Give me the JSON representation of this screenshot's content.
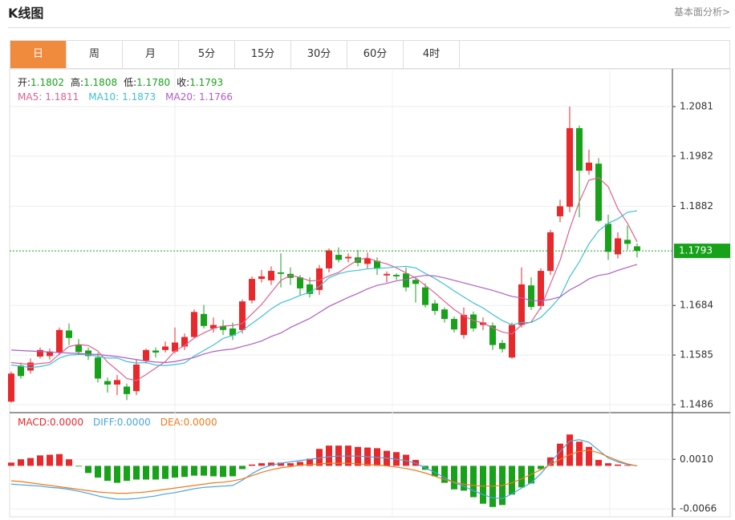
{
  "header": {
    "title": "K线图",
    "link": "基本面分析>"
  },
  "tabs": [
    "日",
    "周",
    "月",
    "5分",
    "15分",
    "30分",
    "60分",
    "4时"
  ],
  "chart_data": [
    {
      "type": "candlestick",
      "info": [
        {
          "name": "开:",
          "value": 1.1802
        },
        {
          "name": "高:",
          "value": 1.1808
        },
        {
          "name": "低:",
          "value": 1.178,
          "label": "1.1780"
        },
        {
          "name": "收:",
          "value": 1.1793
        }
      ],
      "open": [
        1.1492,
        1.1564,
        1.1554,
        1.1582,
        1.1583,
        1.159,
        1.1634,
        1.1606,
        1.1594,
        1.158,
        1.1533,
        1.1526,
        1.1522,
        1.1513,
        1.1574,
        1.1594,
        1.1595,
        1.1592,
        1.1602,
        1.1621,
        1.1667,
        1.1638,
        1.1643,
        1.1638,
        1.1635,
        1.1694,
        1.1737,
        1.1734,
        1.175,
        1.1747,
        1.174,
        1.1726,
        1.1715,
        1.1758,
        1.1785,
        1.1778,
        1.178,
        1.1767,
        1.1773,
        1.1744,
        1.1745,
        1.1748,
        1.1735,
        1.172,
        1.1688,
        1.1676,
        1.1657,
        1.1625,
        1.1666,
        1.1645,
        1.1644,
        1.1609,
        1.158,
        1.1645,
        1.1724,
        1.1683,
        1.1753,
        1.1862,
        1.1881,
        1.2038,
        1.1953,
        1.1967,
        1.1847,
        1.1786,
        1.1815,
        1.1802
      ],
      "high": [
        1.1552,
        1.157,
        1.1578,
        1.16,
        1.1598,
        1.164,
        1.1648,
        1.1617,
        1.16,
        1.159,
        1.154,
        1.1545,
        1.1528,
        1.1575,
        1.1598,
        1.16,
        1.1612,
        1.164,
        1.1628,
        1.1676,
        1.1685,
        1.166,
        1.1655,
        1.165,
        1.1696,
        1.1742,
        1.1755,
        1.1762,
        1.1788,
        1.176,
        1.1745,
        1.174,
        1.1765,
        1.1798,
        1.18,
        1.1788,
        1.1795,
        1.179,
        1.178,
        1.1752,
        1.1748,
        1.176,
        1.174,
        1.1728,
        1.1695,
        1.168,
        1.1662,
        1.168,
        1.1672,
        1.166,
        1.165,
        1.1615,
        1.165,
        1.176,
        1.174,
        1.1758,
        1.1835,
        1.1895,
        1.2081,
        1.2043,
        1.1995,
        1.1978,
        1.1865,
        1.183,
        1.1843,
        1.1808
      ],
      "low": [
        1.149,
        1.1538,
        1.1548,
        1.1578,
        1.1576,
        1.1585,
        1.1605,
        1.1585,
        1.1575,
        1.153,
        1.151,
        1.1505,
        1.1495,
        1.1505,
        1.1568,
        1.158,
        1.159,
        1.1588,
        1.1595,
        1.1618,
        1.1638,
        1.163,
        1.1625,
        1.1615,
        1.1628,
        1.1688,
        1.173,
        1.1725,
        1.172,
        1.1725,
        1.1705,
        1.17,
        1.1705,
        1.175,
        1.177,
        1.177,
        1.1762,
        1.1758,
        1.1745,
        1.173,
        1.1735,
        1.1712,
        1.169,
        1.168,
        1.1665,
        1.165,
        1.163,
        1.1618,
        1.1632,
        1.1635,
        1.1595,
        1.159,
        1.1578,
        1.164,
        1.1675,
        1.1676,
        1.1745,
        1.185,
        1.187,
        1.186,
        1.1945,
        1.185,
        1.1775,
        1.1778,
        1.1795,
        1.178
      ],
      "close": [
        1.1548,
        1.1543,
        1.157,
        1.1595,
        1.1592,
        1.1635,
        1.1619,
        1.1591,
        1.1583,
        1.1538,
        1.1526,
        1.1535,
        1.1507,
        1.1566,
        1.1595,
        1.159,
        1.1602,
        1.161,
        1.1621,
        1.1671,
        1.1643,
        1.1645,
        1.1635,
        1.1624,
        1.1692,
        1.1737,
        1.1742,
        1.1753,
        1.1747,
        1.1739,
        1.1718,
        1.1707,
        1.1758,
        1.1794,
        1.1775,
        1.1781,
        1.1769,
        1.1778,
        1.1758,
        1.1747,
        1.1742,
        1.172,
        1.1727,
        1.1685,
        1.1673,
        1.1657,
        1.1636,
        1.1665,
        1.1638,
        1.165,
        1.1605,
        1.1597,
        1.1645,
        1.1726,
        1.1681,
        1.1753,
        1.183,
        1.1882,
        1.2038,
        1.1953,
        1.1969,
        1.1853,
        1.1791,
        1.1818,
        1.1807,
        1.1793
      ],
      "up_color": "#e8282b",
      "down_color": "#17a21a",
      "series": [
        {
          "name": "MA5:",
          "color": "#e0608f",
          "values": [
            1.157,
            1.1568,
            1.1566,
            1.1568,
            1.157,
            1.1587,
            1.1602,
            1.1606,
            1.1604,
            1.1593,
            1.1571,
            1.1555,
            1.1538,
            1.1534,
            1.1546,
            1.1559,
            1.1572,
            1.1593,
            1.1604,
            1.1619,
            1.1629,
            1.1638,
            1.1643,
            1.1644,
            1.1648,
            1.1667,
            1.1686,
            1.171,
            1.1734,
            1.1744,
            1.174,
            1.1733,
            1.1734,
            1.1743,
            1.175,
            1.1763,
            1.1775,
            1.1779,
            1.1772,
            1.1767,
            1.1759,
            1.1749,
            1.1739,
            1.1724,
            1.1709,
            1.1692,
            1.1676,
            1.1663,
            1.1654,
            1.1649,
            1.1639,
            1.1631,
            1.1627,
            1.1645,
            1.1651,
            1.168,
            1.1727,
            1.1774,
            1.1837,
            1.1891,
            1.1934,
            1.1939,
            1.1921,
            1.1877,
            1.1848,
            1.1811
          ]
        },
        {
          "name": "MA10:",
          "color": "#3fc0d6",
          "values": [
            1.1565,
            1.1563,
            1.156,
            1.1562,
            1.1566,
            1.1579,
            1.1585,
            1.1586,
            1.1586,
            1.1582,
            1.1579,
            1.1579,
            1.1572,
            1.1569,
            1.157,
            1.1565,
            1.1564,
            1.1566,
            1.1569,
            1.1583,
            1.1594,
            1.1605,
            1.1618,
            1.1624,
            1.1634,
            1.1648,
            1.1662,
            1.1677,
            1.1689,
            1.1696,
            1.1704,
            1.171,
            1.1722,
            1.1739,
            1.1747,
            1.1752,
            1.1754,
            1.1757,
            1.1758,
            1.1759,
            1.1761,
            1.1762,
            1.1759,
            1.1748,
            1.1738,
            1.1726,
            1.1713,
            1.1701,
            1.1689,
            1.1679,
            1.1666,
            1.1654,
            1.1645,
            1.165,
            1.165,
            1.166,
            1.1679,
            1.1701,
            1.1741,
            1.1771,
            1.1807,
            1.1833,
            1.1848,
            1.1857,
            1.187,
            1.1873
          ]
        },
        {
          "name": "MA20:",
          "color": "#b05cc4",
          "values": [
            1.1595,
            1.1594,
            1.1593,
            1.1592,
            1.1591,
            1.159,
            1.1589,
            1.1588,
            1.1587,
            1.1586,
            1.1584,
            1.1582,
            1.1579,
            1.1576,
            1.1573,
            1.1571,
            1.157,
            1.1572,
            1.1576,
            1.158,
            1.1587,
            1.1592,
            1.1595,
            1.1597,
            1.1602,
            1.1607,
            1.1613,
            1.1622,
            1.1629,
            1.164,
            1.1649,
            1.1658,
            1.167,
            1.1682,
            1.1691,
            1.17,
            1.1708,
            1.1717,
            1.1724,
            1.1728,
            1.1733,
            1.1736,
            1.1741,
            1.1744,
            1.1743,
            1.1739,
            1.1734,
            1.1729,
            1.1724,
            1.1719,
            1.1714,
            1.1708,
            1.1702,
            1.1699,
            1.1694,
            1.1693,
            1.1696,
            1.1701,
            1.1715,
            1.1725,
            1.1737,
            1.1744,
            1.1747,
            1.1754,
            1.176,
            1.1766
          ]
        }
      ],
      "ylim": [
        1.147,
        1.2153
      ],
      "yticks": [
        1.2081,
        1.1982,
        1.1882,
        1.1684,
        1.1585,
        1.1486
      ],
      "grid": true,
      "last_price": 1.1793,
      "last_price_color": "#17a21a"
    },
    {
      "type": "macd",
      "up_color": "#e8282b",
      "down_color": "#17a21a",
      "series": [
        {
          "name": "MACD:",
          "color": "#e8282b",
          "legend_label": "0.0000",
          "values": [
            0.0005,
            0.001,
            0.0012,
            0.0016,
            0.0017,
            0.0018,
            0.001,
            -0.0001,
            -0.0011,
            -0.0018,
            -0.0023,
            -0.0026,
            -0.0023,
            -0.0021,
            -0.0021,
            -0.0021,
            -0.002,
            -0.0018,
            -0.0017,
            -0.0015,
            -0.0015,
            -0.0016,
            -0.0017,
            -0.0016,
            -0.0005,
            0.0002,
            0.0004,
            0.0005,
            0.0005,
            0.0004,
            0.0006,
            0.0011,
            0.0026,
            0.0031,
            0.0031,
            0.0031,
            0.0029,
            0.0028,
            0.0027,
            0.0023,
            0.0021,
            0.0017,
            0.0009,
            -0.0006,
            -0.0016,
            -0.0026,
            -0.0036,
            -0.0038,
            -0.0048,
            -0.0058,
            -0.0063,
            -0.006,
            -0.0044,
            -0.0033,
            -0.0027,
            -0.0005,
            0.0013,
            0.0034,
            0.0048,
            0.0037,
            0.0029,
            0.0009,
            0.0004,
            0.0002,
            0.0001,
            0
          ]
        },
        {
          "name": "DIFF:",
          "color": "#4aa3df",
          "legend_label": "0.0000",
          "values": [
            -0.0028,
            -0.0029,
            -0.003,
            -0.0031,
            -0.0033,
            -0.0034,
            -0.0036,
            -0.0039,
            -0.0042,
            -0.0046,
            -0.0049,
            -0.0051,
            -0.0051,
            -0.005,
            -0.0048,
            -0.0046,
            -0.0043,
            -0.0041,
            -0.0038,
            -0.0035,
            -0.0033,
            -0.0032,
            -0.0031,
            -0.003,
            -0.0022,
            -0.0012,
            -0.0004,
            0.0001,
            0.0004,
            0.0006,
            0.0008,
            0.001,
            0.0012,
            0.0014,
            0.0015,
            0.0015,
            0.0015,
            0.0014,
            0.0013,
            0.0012,
            0.001,
            0.0008,
            0.0004,
            -0.0003,
            -0.001,
            -0.0018,
            -0.0026,
            -0.0031,
            -0.0038,
            -0.0044,
            -0.0049,
            -0.005,
            -0.0043,
            -0.0034,
            -0.0026,
            -0.0012,
            0.0005,
            0.0022,
            0.0038,
            0.004,
            0.0036,
            0.0024,
            0.0012,
            0.0006,
            0.0002,
            0
          ]
        },
        {
          "name": "DEA:",
          "color": "#f07a1a",
          "legend_label": "0.0000",
          "values": [
            -0.0023,
            -0.0024,
            -0.0026,
            -0.0028,
            -0.003,
            -0.0032,
            -0.0034,
            -0.0036,
            -0.0038,
            -0.004,
            -0.0041,
            -0.0042,
            -0.0042,
            -0.0041,
            -0.004,
            -0.0038,
            -0.0036,
            -0.0034,
            -0.0032,
            -0.003,
            -0.0028,
            -0.0026,
            -0.0025,
            -0.0023,
            -0.002,
            -0.0015,
            -0.001,
            -0.0006,
            -0.0003,
            -0.0001,
            0.0001,
            0.0002,
            0.0003,
            0.0004,
            0.0004,
            0.0004,
            0.0003,
            0.0002,
            0.0001,
            0,
            -0.0002,
            -0.0004,
            -0.0007,
            -0.0011,
            -0.0016,
            -0.0021,
            -0.0025,
            -0.0028,
            -0.003,
            -0.0031,
            -0.0031,
            -0.003,
            -0.0026,
            -0.002,
            -0.0013,
            -0.0006,
            0.0002,
            0.001,
            0.0017,
            0.0022,
            0.0024,
            0.002,
            0.0014,
            0.0008,
            0.0003,
            0
          ]
        }
      ],
      "ylim": [
        -0.0078,
        0.0079
      ],
      "yticks": [
        {
          "value": 0.001,
          "label": "0.0010"
        },
        {
          "value": -0.0066,
          "label": "-0.0066"
        }
      ],
      "grid": true
    }
  ]
}
